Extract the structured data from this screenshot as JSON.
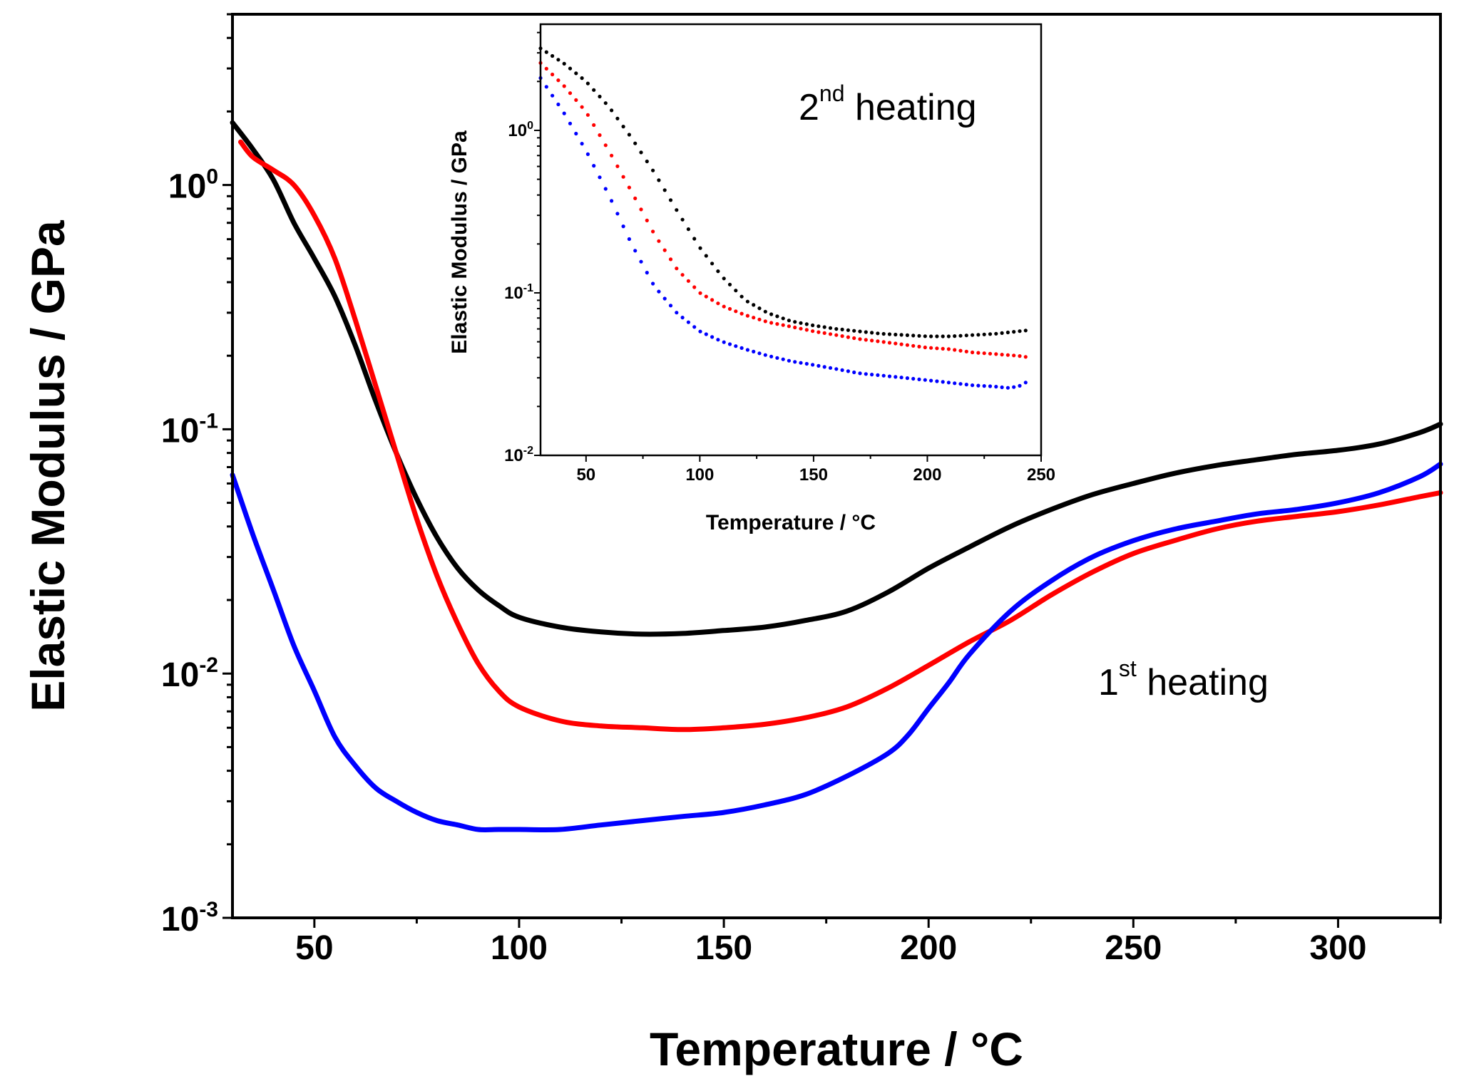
{
  "chart_data": [
    {
      "id": "main",
      "type": "line",
      "title": "",
      "xlabel": "Temperature / °C",
      "ylabel": "Elastic Modulus  / GPa",
      "xlim": [
        30,
        325
      ],
      "ylim": [
        0.001,
        5
      ],
      "yscale": "log",
      "x_ticks": [
        50,
        100,
        150,
        200,
        250,
        300
      ],
      "x_tick_labels": [
        "50",
        "100",
        "150",
        "200",
        "250",
        "300"
      ],
      "y_ticks": [
        0.001,
        0.01,
        0.1,
        1
      ],
      "y_tick_labels": [
        {
          "base": "10",
          "exp": "-3"
        },
        {
          "base": "10",
          "exp": "-2"
        },
        {
          "base": "10",
          "exp": "-1"
        },
        {
          "base": "10",
          "exp": "0"
        }
      ],
      "annotation": {
        "base": "1",
        "sup": "st",
        "rest": " heating"
      },
      "series": [
        {
          "name": "black",
          "color": "#000000",
          "x": [
            30,
            35,
            40,
            45,
            50,
            55,
            60,
            65,
            70,
            75,
            80,
            85,
            90,
            95,
            100,
            110,
            120,
            130,
            140,
            150,
            160,
            170,
            180,
            190,
            200,
            210,
            220,
            230,
            240,
            250,
            260,
            270,
            280,
            290,
            300,
            310,
            320,
            325
          ],
          "values": [
            1.8,
            1.4,
            1.05,
            0.7,
            0.5,
            0.35,
            0.22,
            0.13,
            0.08,
            0.052,
            0.036,
            0.027,
            0.022,
            0.019,
            0.017,
            0.0155,
            0.0148,
            0.0145,
            0.0146,
            0.015,
            0.0155,
            0.0165,
            0.018,
            0.0215,
            0.027,
            0.033,
            0.04,
            0.047,
            0.054,
            0.06,
            0.066,
            0.071,
            0.075,
            0.079,
            0.082,
            0.087,
            0.097,
            0.105
          ]
        },
        {
          "name": "red",
          "color": "#ff0000",
          "x": [
            32,
            35,
            40,
            45,
            50,
            55,
            60,
            65,
            70,
            75,
            80,
            85,
            90,
            95,
            100,
            110,
            120,
            130,
            140,
            150,
            160,
            170,
            180,
            190,
            200,
            210,
            220,
            230,
            240,
            250,
            260,
            270,
            280,
            290,
            300,
            310,
            320,
            325
          ],
          "values": [
            1.5,
            1.3,
            1.15,
            1.0,
            0.75,
            0.5,
            0.28,
            0.15,
            0.08,
            0.043,
            0.025,
            0.016,
            0.011,
            0.0085,
            0.0073,
            0.0064,
            0.0061,
            0.006,
            0.0059,
            0.006,
            0.0062,
            0.0066,
            0.0073,
            0.0087,
            0.0108,
            0.0135,
            0.0165,
            0.021,
            0.026,
            0.031,
            0.035,
            0.039,
            0.042,
            0.044,
            0.046,
            0.049,
            0.053,
            0.055
          ]
        },
        {
          "name": "blue",
          "color": "#0000ff",
          "x": [
            30,
            35,
            40,
            45,
            50,
            55,
            60,
            65,
            70,
            75,
            80,
            85,
            90,
            95,
            100,
            110,
            120,
            130,
            140,
            150,
            160,
            170,
            180,
            190,
            195,
            200,
            205,
            210,
            220,
            230,
            240,
            250,
            260,
            270,
            280,
            290,
            300,
            310,
            320,
            325
          ],
          "values": [
            0.065,
            0.037,
            0.022,
            0.013,
            0.0085,
            0.0055,
            0.0042,
            0.0034,
            0.003,
            0.0027,
            0.0025,
            0.0024,
            0.0023,
            0.0023,
            0.0023,
            0.0023,
            0.0024,
            0.0025,
            0.0026,
            0.0027,
            0.0029,
            0.0032,
            0.0038,
            0.0047,
            0.0056,
            0.0072,
            0.0092,
            0.012,
            0.018,
            0.024,
            0.03,
            0.035,
            0.039,
            0.042,
            0.045,
            0.047,
            0.05,
            0.055,
            0.064,
            0.072
          ]
        }
      ]
    },
    {
      "id": "inset",
      "type": "scatter",
      "title": "",
      "xlabel": "Temperature / °C",
      "ylabel": "Elastic Modulus  / GPa",
      "xlim": [
        30,
        250
      ],
      "ylim": [
        0.01,
        4.5
      ],
      "yscale": "log",
      "x_ticks": [
        50,
        100,
        150,
        200,
        250
      ],
      "x_tick_labels": [
        "50",
        "100",
        "150",
        "200",
        "250"
      ],
      "y_ticks": [
        0.01,
        0.1,
        1
      ],
      "y_tick_labels": [
        {
          "base": "10",
          "exp": "-2"
        },
        {
          "base": "10",
          "exp": "-1"
        },
        {
          "base": "10",
          "exp": "0"
        }
      ],
      "annotation": {
        "base": "2",
        "sup": "nd",
        "rest": " heating"
      },
      "series": [
        {
          "name": "black",
          "color": "#000000",
          "x": [
            30,
            40,
            50,
            60,
            70,
            80,
            90,
            100,
            110,
            120,
            130,
            140,
            150,
            160,
            170,
            180,
            190,
            200,
            210,
            220,
            230,
            240,
            245
          ],
          "values": [
            3.2,
            2.6,
            2.0,
            1.4,
            0.9,
            0.55,
            0.32,
            0.19,
            0.125,
            0.09,
            0.075,
            0.067,
            0.063,
            0.06,
            0.058,
            0.056,
            0.055,
            0.054,
            0.054,
            0.055,
            0.056,
            0.058,
            0.059
          ]
        },
        {
          "name": "red",
          "color": "#ff0000",
          "x": [
            30,
            40,
            50,
            60,
            70,
            80,
            90,
            100,
            110,
            120,
            130,
            140,
            150,
            160,
            170,
            180,
            190,
            200,
            210,
            220,
            230,
            240,
            245
          ],
          "values": [
            2.6,
            1.9,
            1.3,
            0.75,
            0.42,
            0.23,
            0.14,
            0.1,
            0.083,
            0.073,
            0.066,
            0.062,
            0.058,
            0.055,
            0.052,
            0.05,
            0.048,
            0.046,
            0.045,
            0.043,
            0.042,
            0.041,
            0.04
          ]
        },
        {
          "name": "blue",
          "color": "#0000ff",
          "x": [
            30,
            40,
            50,
            60,
            70,
            80,
            90,
            100,
            110,
            120,
            130,
            140,
            150,
            160,
            170,
            180,
            190,
            200,
            210,
            220,
            230,
            235,
            240,
            245
          ],
          "values": [
            2.1,
            1.3,
            0.75,
            0.4,
            0.2,
            0.11,
            0.075,
            0.058,
            0.05,
            0.045,
            0.041,
            0.038,
            0.036,
            0.034,
            0.032,
            0.031,
            0.03,
            0.029,
            0.028,
            0.027,
            0.0265,
            0.026,
            0.0265,
            0.029
          ]
        }
      ]
    }
  ]
}
